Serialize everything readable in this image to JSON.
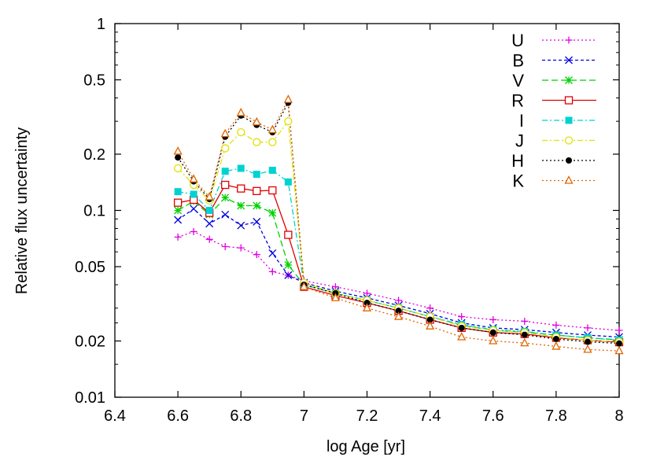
{
  "chart_data": {
    "type": "line",
    "title": "",
    "xlabel": "log Age [yr]",
    "ylabel": "Relative flux uncertainty",
    "xlim": [
      6.4,
      8
    ],
    "ylim": [
      0.01,
      1
    ],
    "yscale": "log",
    "grid": false,
    "legend_position": "top-right",
    "xticks": [
      6.4,
      6.6,
      6.8,
      7,
      7.2,
      7.4,
      7.6,
      7.8,
      8
    ],
    "xtick_labels": [
      "6.4",
      "6.6",
      "6.8",
      "7",
      "7.2",
      "7.4",
      "7.6",
      "7.8",
      "8"
    ],
    "yticks": [
      0.01,
      0.02,
      0.05,
      0.1,
      0.2,
      0.5,
      1
    ],
    "ytick_labels": [
      "0.01",
      "0.02",
      "0.05",
      "0.1",
      "0.2",
      "0.5",
      "1"
    ],
    "x": [
      6.6,
      6.65,
      6.7,
      6.75,
      6.8,
      6.85,
      6.9,
      6.95,
      7.0,
      7.1,
      7.2,
      7.3,
      7.4,
      7.5,
      7.6,
      7.7,
      7.8,
      7.9,
      8.0
    ],
    "series": [
      {
        "name": "U",
        "color": "#e100e1",
        "dash": "2,3",
        "marker": "plus",
        "values": [
          0.072,
          0.077,
          0.07,
          0.064,
          0.063,
          0.058,
          0.047,
          0.045,
          0.042,
          0.039,
          0.036,
          0.033,
          0.03,
          0.027,
          0.026,
          0.0255,
          0.0243,
          0.0235,
          0.0228
        ]
      },
      {
        "name": "B",
        "color": "#0000e1",
        "dash": "4,3",
        "marker": "x",
        "values": [
          0.089,
          0.102,
          0.085,
          0.095,
          0.083,
          0.087,
          0.059,
          0.045,
          0.041,
          0.037,
          0.034,
          0.031,
          0.028,
          0.025,
          0.0235,
          0.023,
          0.0222,
          0.0215,
          0.021
        ]
      },
      {
        "name": "V",
        "color": "#00d200",
        "dash": "8,4",
        "marker": "star",
        "values": [
          0.1,
          0.112,
          0.095,
          0.117,
          0.106,
          0.106,
          0.097,
          0.051,
          0.04,
          0.036,
          0.033,
          0.03,
          0.027,
          0.0243,
          0.0228,
          0.0223,
          0.0215,
          0.0208,
          0.0203
        ]
      },
      {
        "name": "R",
        "color": "#e10000",
        "dash": "",
        "marker": "square",
        "values": [
          0.11,
          0.114,
          0.097,
          0.137,
          0.131,
          0.127,
          0.128,
          0.074,
          0.039,
          0.035,
          0.032,
          0.029,
          0.026,
          0.0235,
          0.0222,
          0.0218,
          0.0208,
          0.0202,
          0.0197
        ]
      },
      {
        "name": "I",
        "color": "#00d2d2",
        "dash": "7,3,2,3",
        "marker": "filled-square",
        "values": [
          0.126,
          0.122,
          0.1,
          0.162,
          0.168,
          0.156,
          0.164,
          0.142,
          0.04,
          0.036,
          0.033,
          0.03,
          0.027,
          0.0245,
          0.023,
          0.0225,
          0.0215,
          0.0208,
          0.0202
        ]
      },
      {
        "name": "J",
        "color": "#e1e100",
        "dash": "7,3,2,3",
        "marker": "circle",
        "values": [
          0.168,
          0.137,
          0.113,
          0.215,
          0.262,
          0.232,
          0.232,
          0.3,
          0.041,
          0.036,
          0.033,
          0.03,
          0.027,
          0.024,
          0.0228,
          0.0222,
          0.021,
          0.0202,
          0.0198
        ]
      },
      {
        "name": "H",
        "color": "#000000",
        "dash": "2,3",
        "marker": "filled-circle",
        "values": [
          0.192,
          0.143,
          0.115,
          0.248,
          0.322,
          0.287,
          0.262,
          0.377,
          0.04,
          0.036,
          0.032,
          0.029,
          0.026,
          0.0235,
          0.0222,
          0.0216,
          0.0205,
          0.0198,
          0.0194
        ]
      },
      {
        "name": "K",
        "color": "#e16400",
        "dash": "2,3",
        "marker": "triangle",
        "values": [
          0.207,
          0.147,
          0.118,
          0.257,
          0.333,
          0.297,
          0.27,
          0.392,
          0.039,
          0.034,
          0.03,
          0.027,
          0.024,
          0.021,
          0.02,
          0.0195,
          0.0187,
          0.018,
          0.0177
        ]
      }
    ]
  }
}
